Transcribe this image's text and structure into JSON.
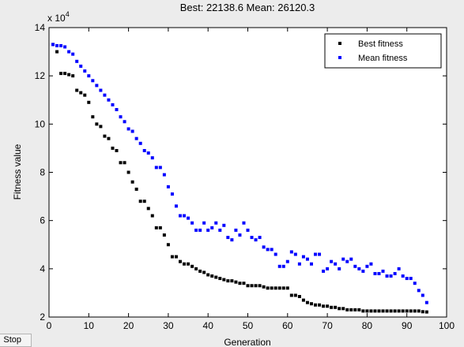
{
  "chart_data": {
    "type": "scatter",
    "title": "Best: 22138.6 Mean: 26120.3",
    "xlabel": "Generation",
    "ylabel": "Fitness value",
    "y_multiplier_label": "x 10",
    "y_multiplier_exponent": "4",
    "xlim": [
      0,
      100
    ],
    "ylim": [
      2,
      14
    ],
    "xticks": [
      "0",
      "10",
      "20",
      "30",
      "40",
      "50",
      "60",
      "70",
      "80",
      "90",
      "100"
    ],
    "yticks": [
      "2",
      "4",
      "6",
      "8",
      "10",
      "12",
      "14"
    ],
    "grid": false,
    "legend_position": "top-right",
    "series": [
      {
        "name": "Best fitness",
        "color": "#000000",
        "x": [
          1,
          2,
          3,
          4,
          5,
          6,
          7,
          8,
          9,
          10,
          11,
          12,
          13,
          14,
          15,
          16,
          17,
          18,
          19,
          20,
          21,
          22,
          23,
          24,
          25,
          26,
          27,
          28,
          29,
          30,
          31,
          32,
          33,
          34,
          35,
          36,
          37,
          38,
          39,
          40,
          41,
          42,
          43,
          44,
          45,
          46,
          47,
          48,
          49,
          50,
          51,
          52,
          53,
          54,
          55,
          56,
          57,
          58,
          59,
          60,
          61,
          62,
          63,
          64,
          65,
          66,
          67,
          68,
          69,
          70,
          71,
          72,
          73,
          74,
          75,
          76,
          77,
          78,
          79,
          80,
          81,
          82,
          83,
          84,
          85,
          86,
          87,
          88,
          89,
          90,
          91,
          92,
          93,
          94,
          95
        ],
        "values": [
          13.3,
          13.0,
          12.1,
          12.1,
          12.05,
          12.0,
          11.4,
          11.3,
          11.2,
          10.9,
          10.3,
          10.0,
          9.9,
          9.5,
          9.4,
          9.0,
          8.9,
          8.4,
          8.4,
          8.0,
          7.6,
          7.3,
          6.8,
          6.8,
          6.5,
          6.2,
          5.7,
          5.7,
          5.4,
          5.0,
          4.5,
          4.5,
          4.3,
          4.2,
          4.2,
          4.1,
          4.0,
          3.9,
          3.85,
          3.75,
          3.7,
          3.65,
          3.6,
          3.55,
          3.5,
          3.5,
          3.45,
          3.4,
          3.4,
          3.3,
          3.3,
          3.3,
          3.3,
          3.25,
          3.2,
          3.2,
          3.2,
          3.2,
          3.2,
          3.2,
          2.9,
          2.9,
          2.85,
          2.7,
          2.6,
          2.55,
          2.5,
          2.5,
          2.45,
          2.45,
          2.4,
          2.4,
          2.35,
          2.35,
          2.3,
          2.3,
          2.3,
          2.3,
          2.25,
          2.25,
          2.25,
          2.25,
          2.25,
          2.25,
          2.25,
          2.25,
          2.25,
          2.25,
          2.25,
          2.25,
          2.25,
          2.25,
          2.25,
          2.22,
          2.21
        ]
      },
      {
        "name": "Mean fitness",
        "color": "#0000ff",
        "x": [
          1,
          2,
          3,
          4,
          5,
          6,
          7,
          8,
          9,
          10,
          11,
          12,
          13,
          14,
          15,
          16,
          17,
          18,
          19,
          20,
          21,
          22,
          23,
          24,
          25,
          26,
          27,
          28,
          29,
          30,
          31,
          32,
          33,
          34,
          35,
          36,
          37,
          38,
          39,
          40,
          41,
          42,
          43,
          44,
          45,
          46,
          47,
          48,
          49,
          50,
          51,
          52,
          53,
          54,
          55,
          56,
          57,
          58,
          59,
          60,
          61,
          62,
          63,
          64,
          65,
          66,
          67,
          68,
          69,
          70,
          71,
          72,
          73,
          74,
          75,
          76,
          77,
          78,
          79,
          80,
          81,
          82,
          83,
          84,
          85,
          86,
          87,
          88,
          89,
          90,
          91,
          92,
          93,
          94,
          95
        ],
        "values": [
          13.3,
          13.25,
          13.25,
          13.2,
          13.0,
          12.9,
          12.6,
          12.4,
          12.2,
          12.0,
          11.8,
          11.6,
          11.4,
          11.2,
          11.0,
          10.8,
          10.6,
          10.3,
          10.1,
          9.8,
          9.7,
          9.4,
          9.2,
          8.9,
          8.8,
          8.6,
          8.2,
          8.2,
          7.9,
          7.4,
          7.1,
          6.6,
          6.2,
          6.2,
          6.1,
          5.9,
          5.6,
          5.6,
          5.9,
          5.6,
          5.7,
          5.9,
          5.6,
          5.8,
          5.3,
          5.2,
          5.6,
          5.4,
          5.9,
          5.6,
          5.3,
          5.2,
          5.3,
          4.9,
          4.8,
          4.8,
          4.6,
          4.1,
          4.1,
          4.3,
          4.7,
          4.6,
          4.2,
          4.5,
          4.4,
          4.2,
          4.6,
          4.6,
          3.9,
          4.0,
          4.3,
          4.2,
          4.0,
          4.4,
          4.3,
          4.4,
          4.1,
          4.0,
          3.9,
          4.1,
          4.2,
          3.8,
          3.8,
          3.9,
          3.7,
          3.7,
          3.8,
          4.0,
          3.7,
          3.6,
          3.6,
          3.4,
          3.1,
          2.9,
          2.6
        ]
      }
    ]
  },
  "controls": {
    "stop_label": "Stop"
  }
}
